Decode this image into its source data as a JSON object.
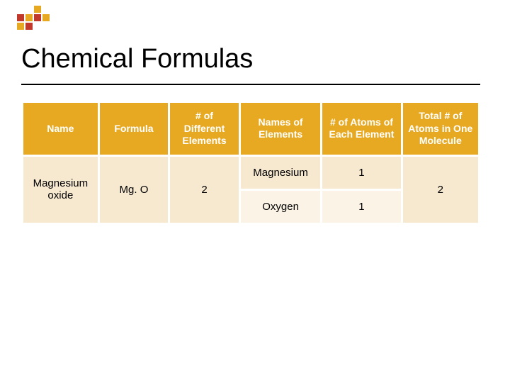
{
  "logo": {
    "squares": [
      [
        null,
        null,
        "#e7a921",
        null
      ],
      [
        "#c0392b",
        "#e7a921",
        "#c0392b",
        "#e7a921"
      ],
      [
        "#e7a921",
        "#c0392b",
        null,
        null
      ]
    ]
  },
  "title": "Chemical Formulas",
  "table": {
    "headers": {
      "name": "Name",
      "formula": "Formula",
      "n_diff": "# of Different Elements",
      "names_of": "Names of Elements",
      "n_atoms": "# of Atoms of Each Element",
      "total": "Total # of Atoms in One Molecule"
    },
    "rows": [
      {
        "name": "Magnesium oxide",
        "formula": "Mg. O",
        "n_diff": "2",
        "elements": [
          {
            "name": "Magnesium",
            "atoms": "1"
          },
          {
            "name": "Oxygen",
            "atoms": "1"
          }
        ],
        "total": "2"
      }
    ],
    "header_bg": "#e7a921",
    "header_fg": "#ffffff",
    "row_bg_a": "#f7e9d0",
    "row_bg_b": "#fbf3e5"
  }
}
